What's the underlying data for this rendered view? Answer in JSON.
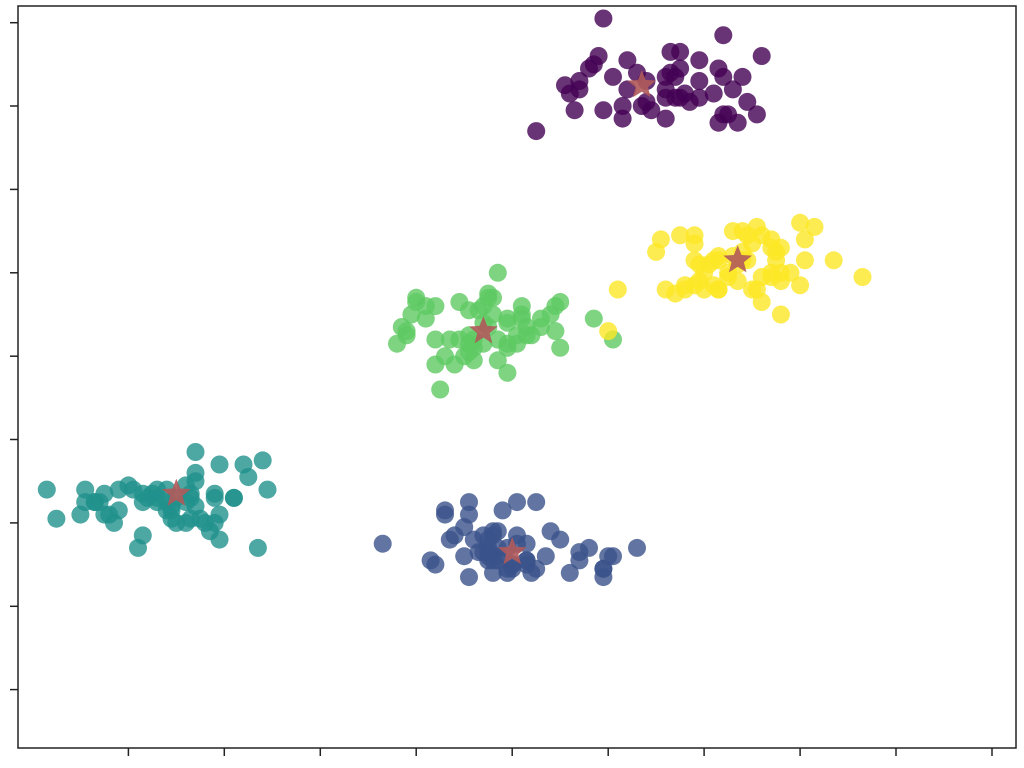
{
  "chart_data": {
    "type": "scatter",
    "title": "",
    "xlabel": "",
    "ylabel": "",
    "xlim": [
      -10.3,
      10.5
    ],
    "ylim": [
      -7.4,
      10.4
    ],
    "x_ticks": [
      -8,
      -6,
      -4,
      -2,
      0,
      2,
      4,
      6,
      8,
      10
    ],
    "y_ticks": [
      -6,
      -4,
      -2,
      0,
      2,
      4,
      6,
      8,
      10
    ],
    "tick_labels_visible": false,
    "grid": false,
    "legend": "none",
    "series": [
      {
        "color": "#440154",
        "points": [
          [
            1.9,
            10.1
          ],
          [
            3.2,
            8.7
          ],
          [
            3.3,
            9.3
          ],
          [
            1.4,
            8.6
          ],
          [
            3.9,
            9.1
          ],
          [
            5.2,
            9.2
          ],
          [
            2.4,
            8.4
          ],
          [
            3.5,
            8.2
          ],
          [
            4.6,
            8.4
          ],
          [
            3.2,
            7.7
          ],
          [
            1.9,
            7.9
          ],
          [
            3.3,
            8.8
          ],
          [
            2.8,
            8.6
          ],
          [
            4.5,
            7.8
          ],
          [
            4.4,
            7.8
          ],
          [
            3.9,
            8.6
          ],
          [
            1.3,
            7.9
          ],
          [
            3.6,
            8.3
          ],
          [
            3.5,
            8.9
          ],
          [
            3.4,
            8.7
          ],
          [
            4.4,
            8.7
          ],
          [
            2.1,
            8.7
          ],
          [
            1.6,
            8.9
          ],
          [
            2.9,
            7.9
          ],
          [
            3.4,
            8.2
          ],
          [
            1.4,
            8.4
          ],
          [
            4.2,
            8.3
          ],
          [
            4.3,
            7.6
          ],
          [
            4.3,
            8.9
          ],
          [
            3.7,
            8.1
          ],
          [
            4.8,
            8.7
          ],
          [
            4.7,
            7.6
          ],
          [
            5.1,
            7.8
          ],
          [
            2.6,
            8.8
          ],
          [
            1.8,
            9.2
          ],
          [
            2.8,
            8.1
          ],
          [
            3.9,
            8.2
          ],
          [
            1.2,
            8.3
          ],
          [
            2.4,
            9.1
          ],
          [
            3.5,
            9.3
          ],
          [
            0.5,
            7.4
          ],
          [
            3.2,
            8.4
          ],
          [
            3.2,
            8.2
          ],
          [
            2.3,
            8.0
          ],
          [
            1.1,
            8.5
          ],
          [
            4.4,
            9.7
          ],
          [
            1.7,
            9.0
          ],
          [
            2.3,
            7.7
          ],
          [
            2.7,
            8.0
          ],
          [
            4.9,
            8.1
          ]
        ]
      },
      {
        "color": "#3b528b",
        "points": [
          [
            0.8,
            -2.2
          ],
          [
            -1.3,
            -2.4
          ],
          [
            -1.7,
            -2.9
          ],
          [
            -0.4,
            -2.3
          ],
          [
            2.1,
            -2.8
          ],
          [
            -0.9,
            -1.5
          ],
          [
            0.1,
            -2.5
          ],
          [
            1.9,
            -3.3
          ],
          [
            0.3,
            -3.0
          ],
          [
            -0.3,
            -2.8
          ],
          [
            0.0,
            -3.1
          ],
          [
            -0.3,
            -2.9
          ],
          [
            -0.6,
            -2.3
          ],
          [
            1.9,
            -3.1
          ],
          [
            -1.6,
            -3.0
          ],
          [
            2.6,
            -2.6
          ],
          [
            -0.1,
            -3.1
          ],
          [
            0.3,
            -2.9
          ],
          [
            0.5,
            -3.1
          ],
          [
            -1.0,
            -2.8
          ],
          [
            2.0,
            -2.8
          ],
          [
            -0.6,
            -2.7
          ],
          [
            0.1,
            -2.3
          ],
          [
            -0.3,
            -2.2
          ],
          [
            1.0,
            -2.4
          ],
          [
            1.2,
            -3.2
          ],
          [
            1.4,
            -2.9
          ],
          [
            1.6,
            -2.6
          ],
          [
            -0.5,
            -2.4
          ],
          [
            0.7,
            -2.8
          ],
          [
            1.4,
            -2.7
          ],
          [
            -0.9,
            -3.3
          ],
          [
            -0.4,
            -2.2
          ],
          [
            0.4,
            -3.2
          ],
          [
            1.9,
            -3.1
          ],
          [
            0.3,
            -2.5
          ],
          [
            -0.3,
            -2.6
          ],
          [
            -0.4,
            -2.8
          ],
          [
            0.1,
            -1.5
          ],
          [
            -0.8,
            -2.4
          ],
          [
            -0.7,
            -2.7
          ],
          [
            -0.1,
            -3.2
          ],
          [
            -0.5,
            -2.6
          ],
          [
            -1.2,
            -2.3
          ],
          [
            -2.7,
            -2.5
          ],
          [
            0.0,
            -3.0
          ],
          [
            -0.4,
            -3.2
          ],
          [
            -1.4,
            -1.7
          ],
          [
            -1.4,
            -1.8
          ],
          [
            -0.2,
            -1.7
          ],
          [
            0.5,
            -1.5
          ],
          [
            -1.0,
            -2.1
          ],
          [
            -0.9,
            -1.8
          ],
          [
            -0.5,
            -2.7
          ],
          [
            -0.4,
            -2.9
          ],
          [
            0.0,
            -3.0
          ],
          [
            -0.5,
            -2.9
          ],
          [
            -0.5,
            -2.8
          ],
          [
            0.3,
            -2.9
          ],
          [
            -0.1,
            -2.6
          ]
        ]
      },
      {
        "color": "#21918c",
        "points": [
          [
            -7.4,
            -1.2
          ],
          [
            -6.4,
            -2.0
          ],
          [
            -7.0,
            -2.0
          ],
          [
            -9.5,
            -1.9
          ],
          [
            -7.4,
            -1.5
          ],
          [
            -7.1,
            -1.6
          ],
          [
            -8.2,
            -1.2
          ],
          [
            -7.7,
            -1.5
          ],
          [
            -8.7,
            -1.5
          ],
          [
            -5.2,
            -0.5
          ],
          [
            -9.7,
            -1.2
          ],
          [
            -7.5,
            -1.3
          ],
          [
            -8.3,
            -2.0
          ],
          [
            -7.2,
            -1.5
          ],
          [
            -6.3,
            -2.2
          ],
          [
            -7.9,
            -1.2
          ],
          [
            -7.1,
            -1.7
          ],
          [
            -7.0,
            -1.4
          ],
          [
            -8.4,
            -1.8
          ],
          [
            -8.2,
            -1.7
          ],
          [
            -5.1,
            -1.2
          ],
          [
            -5.3,
            -2.6
          ],
          [
            -5.6,
            -0.6
          ],
          [
            -5.5,
            -0.9
          ],
          [
            -7.6,
            -1.4
          ],
          [
            -8.0,
            -1.1
          ],
          [
            -8.5,
            -1.3
          ],
          [
            -7.2,
            -1.2
          ],
          [
            -6.8,
            -1.5
          ],
          [
            -6.6,
            -0.3
          ],
          [
            -6.2,
            -2.0
          ],
          [
            -6.1,
            -0.6
          ],
          [
            -7.2,
            -1.7
          ],
          [
            -5.8,
            -1.4
          ],
          [
            -6.2,
            -1.4
          ],
          [
            -6.8,
            -2.0
          ],
          [
            -8.9,
            -1.5
          ],
          [
            -6.6,
            -1.0
          ],
          [
            -7.7,
            -2.3
          ],
          [
            -6.7,
            -1.9
          ],
          [
            -6.5,
            -1.9
          ],
          [
            -7.1,
            -1.9
          ],
          [
            -9.0,
            -1.8
          ],
          [
            -6.6,
            -0.8
          ],
          [
            -6.8,
            -1.1
          ],
          [
            -8.7,
            -1.5
          ],
          [
            -7.8,
            -2.6
          ],
          [
            -8.6,
            -1.5
          ],
          [
            -6.1,
            -2.4
          ],
          [
            -6.7,
            -1.3
          ],
          [
            -6.1,
            -1.8
          ],
          [
            -7.4,
            -1.4
          ],
          [
            -5.8,
            -1.4
          ],
          [
            -7.7,
            -1.3
          ],
          [
            -8.9,
            -1.2
          ],
          [
            -6.6,
            -1.6
          ],
          [
            -8.5,
            -1.8
          ],
          [
            -6.7,
            -1.4
          ],
          [
            -6.2,
            -1.3
          ]
        ]
      },
      {
        "color": "#5ec962",
        "points": [
          [
            -1.6,
            3.2
          ],
          [
            -1.3,
            2.4
          ],
          [
            -0.9,
            2.5
          ],
          [
            0.6,
            2.9
          ],
          [
            -0.1,
            2.9
          ],
          [
            0.8,
            3.0
          ],
          [
            -1.6,
            1.8
          ],
          [
            -0.9,
            2.3
          ],
          [
            -1.1,
            3.3
          ],
          [
            -0.4,
            3.4
          ],
          [
            0.2,
            3.0
          ],
          [
            -1.8,
            3.2
          ],
          [
            -0.6,
            2.3
          ],
          [
            0.1,
            2.5
          ],
          [
            -1.1,
            2.4
          ],
          [
            -0.8,
            2.2
          ],
          [
            0.4,
            2.5
          ],
          [
            -0.1,
            2.3
          ],
          [
            -0.8,
            1.9
          ],
          [
            0.2,
            2.9
          ],
          [
            -0.6,
            3.2
          ],
          [
            0.3,
            2.5
          ],
          [
            0.1,
            2.3
          ],
          [
            -0.3,
            1.9
          ],
          [
            -0.5,
            3.4
          ],
          [
            -2.0,
            3.4
          ],
          [
            -0.3,
            2.4
          ],
          [
            -0.9,
            3.1
          ],
          [
            -0.4,
            3.0
          ],
          [
            -2.1,
            3.0
          ],
          [
            -1.5,
            1.2
          ],
          [
            0.6,
            2.7
          ],
          [
            -0.1,
            1.6
          ],
          [
            -2.0,
            3.3
          ],
          [
            0.2,
            3.2
          ],
          [
            -0.9,
            2.1
          ],
          [
            -0.5,
            2.7
          ],
          [
            -2.2,
            2.5
          ],
          [
            0.3,
            2.7
          ],
          [
            -1.2,
            1.8
          ],
          [
            -0.6,
            2.8
          ],
          [
            -0.1,
            2.8
          ],
          [
            -1.6,
            2.4
          ],
          [
            -0.3,
            4.0
          ],
          [
            -2.2,
            2.6
          ],
          [
            -1.4,
            2.0
          ],
          [
            -0.8,
            2.4
          ],
          [
            -1.8,
            2.9
          ],
          [
            -0.1,
            2.2
          ],
          [
            0.9,
            2.6
          ],
          [
            1.7,
            2.9
          ],
          [
            1.0,
            3.3
          ],
          [
            -1.0,
            2.0
          ],
          [
            2.1,
            2.4
          ],
          [
            1.0,
            2.2
          ],
          [
            -2.4,
            2.3
          ],
          [
            -0.7,
            3.1
          ],
          [
            0.9,
            3.2
          ],
          [
            -2.3,
            2.7
          ],
          [
            -0.5,
            3.5
          ]
        ]
      },
      {
        "color": "#fde725",
        "points": [
          [
            3.6,
            3.6
          ],
          [
            4.2,
            3.7
          ],
          [
            4.7,
            4.2
          ],
          [
            3.4,
            3.5
          ],
          [
            3.6,
            3.7
          ],
          [
            6.7,
            4.3
          ],
          [
            5.6,
            3.8
          ],
          [
            5.6,
            3.0
          ],
          [
            4.6,
            4.4
          ],
          [
            3.8,
            4.7
          ],
          [
            4.3,
            4.3
          ],
          [
            3.2,
            3.6
          ],
          [
            4.6,
            5.0
          ],
          [
            4.3,
            4.4
          ],
          [
            4.8,
            4.3
          ],
          [
            3.8,
            4.9
          ],
          [
            5.6,
            4.0
          ],
          [
            6.0,
            3.7
          ],
          [
            7.3,
            3.9
          ],
          [
            3.9,
            4.2
          ],
          [
            4.1,
            4.2
          ],
          [
            5.4,
            3.9
          ],
          [
            3.0,
            4.5
          ],
          [
            2.2,
            3.6
          ],
          [
            5.0,
            3.6
          ],
          [
            4.7,
            3.8
          ],
          [
            4.9,
            4.3
          ],
          [
            5.6,
            4.6
          ],
          [
            4.5,
            4.0
          ],
          [
            4.0,
            3.6
          ],
          [
            3.9,
            3.8
          ],
          [
            4.3,
            3.6
          ],
          [
            4.9,
            4.9
          ],
          [
            4.5,
            3.9
          ],
          [
            3.1,
            4.8
          ],
          [
            5.8,
            4.0
          ],
          [
            6.3,
            5.1
          ],
          [
            5.2,
            4.9
          ],
          [
            6.0,
            5.2
          ],
          [
            5.2,
            3.3
          ],
          [
            4.2,
            4.3
          ],
          [
            5.4,
            4.8
          ],
          [
            5.5,
            4.3
          ],
          [
            4.8,
            5.0
          ],
          [
            5.4,
            4.6
          ],
          [
            5.0,
            4.7
          ],
          [
            5.4,
            4.0
          ],
          [
            5.2,
            3.9
          ],
          [
            3.5,
            4.9
          ],
          [
            3.8,
            3.7
          ],
          [
            4.8,
            4.5
          ],
          [
            6.1,
            4.8
          ],
          [
            3.8,
            4.3
          ],
          [
            4.3,
            3.6
          ],
          [
            5.5,
            4.5
          ],
          [
            4.0,
            4.0
          ],
          [
            5.1,
            3.6
          ],
          [
            5.1,
            5.1
          ],
          [
            6.1,
            4.3
          ],
          [
            2.0,
            2.6
          ]
        ]
      }
    ],
    "centers": {
      "color": "#b05a5a",
      "marker": "star",
      "points": [
        [
          2.7,
          8.5
        ],
        [
          0.0,
          -2.7
        ],
        [
          -7.0,
          -1.3
        ],
        [
          -0.6,
          2.6
        ],
        [
          4.7,
          4.3
        ]
      ]
    }
  }
}
